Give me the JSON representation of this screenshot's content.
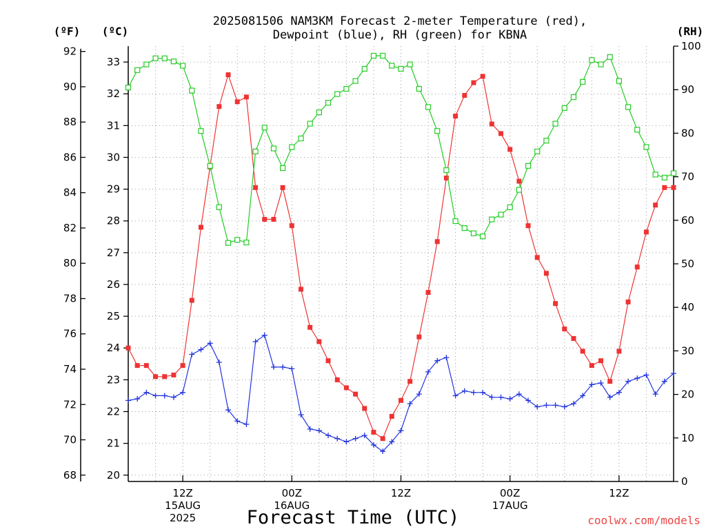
{
  "title_line1": "2025081506 NAM3KM Forecast 2-meter Temperature (red),",
  "title_line2": "Dewpoint (blue), RH (green) for KBNA",
  "unit_f": "(ºF)",
  "unit_c": "(ºC)",
  "unit_rh": "(RH)",
  "xlabel": "Forecast Time (UTC)",
  "credit": "coolwx.com/models",
  "colors": {
    "temp": "#ee3333",
    "dewpoint": "#2233dd",
    "rh": "#22cc22",
    "grid": "#999999"
  },
  "chart_data": {
    "type": "line",
    "x_unit": "forecast hour from 2025-08-15 06Z (hourly points)",
    "x_hours": [
      0,
      1,
      2,
      3,
      4,
      5,
      6,
      7,
      8,
      9,
      10,
      11,
      12,
      13,
      14,
      15,
      16,
      17,
      18,
      19,
      20,
      21,
      22,
      23,
      24,
      25,
      26,
      27,
      28,
      29,
      30,
      31,
      32,
      33,
      34,
      35,
      36,
      37,
      38,
      39,
      40,
      41,
      42,
      43,
      44,
      45,
      46,
      47,
      48,
      49,
      50,
      51,
      52,
      53,
      54,
      55,
      56,
      57,
      58,
      59,
      60
    ],
    "x_ticks": [
      {
        "hour": 6,
        "lines": [
          "12Z",
          "15AUG",
          "2025"
        ]
      },
      {
        "hour": 18,
        "lines": [
          "00Z",
          "16AUG"
        ]
      },
      {
        "hour": 30,
        "lines": [
          "12Z"
        ]
      },
      {
        "hour": 42,
        "lines": [
          "00Z",
          "17AUG"
        ]
      },
      {
        "hour": 54,
        "lines": [
          "12Z"
        ]
      }
    ],
    "y_left_f": {
      "ticks": [
        68,
        70,
        72,
        74,
        76,
        78,
        80,
        82,
        84,
        86,
        88,
        90,
        92
      ]
    },
    "y_left_c": {
      "min": 19.8,
      "max": 33.5,
      "ticks": [
        20,
        21,
        22,
        23,
        24,
        25,
        26,
        27,
        28,
        29,
        30,
        31,
        32,
        33
      ]
    },
    "y_right_rh": {
      "min": 0,
      "max": 100,
      "ticks": [
        0,
        10,
        20,
        30,
        40,
        50,
        60,
        70,
        80,
        90,
        100
      ]
    },
    "grid": true,
    "series": [
      {
        "name": "Temperature",
        "axis": "celsius",
        "marker": "filled-square",
        "values": [
          24.0,
          23.45,
          23.45,
          23.1,
          23.1,
          23.15,
          23.45,
          25.5,
          27.8,
          29.7,
          31.6,
          32.6,
          31.75,
          31.9,
          29.05,
          28.05,
          28.05,
          29.05,
          27.85,
          25.85,
          24.65,
          24.2,
          23.6,
          23.0,
          22.75,
          22.55,
          22.1,
          21.35,
          21.15,
          21.85,
          22.35,
          22.95,
          24.35,
          25.75,
          27.35,
          29.35,
          31.3,
          31.95,
          32.35,
          32.55,
          31.05,
          30.75,
          30.25,
          29.25,
          27.85,
          26.85,
          26.35,
          25.4,
          24.6,
          24.3,
          23.9,
          23.45,
          23.6,
          22.95,
          23.9,
          25.45,
          26.55,
          27.65,
          28.5,
          29.05,
          29.05
        ]
      },
      {
        "name": "Dewpoint",
        "axis": "celsius",
        "marker": "plus",
        "values": [
          22.35,
          22.4,
          22.6,
          22.5,
          22.5,
          22.45,
          22.6,
          23.8,
          23.95,
          24.15,
          23.55,
          22.05,
          21.7,
          21.6,
          24.2,
          24.4,
          23.4,
          23.4,
          23.35,
          21.9,
          21.45,
          21.4,
          21.25,
          21.15,
          21.05,
          21.15,
          21.25,
          20.95,
          20.75,
          21.05,
          21.4,
          22.25,
          22.55,
          23.25,
          23.6,
          23.7,
          22.5,
          22.65,
          22.6,
          22.6,
          22.45,
          22.45,
          22.4,
          22.55,
          22.35,
          22.15,
          22.2,
          22.2,
          22.15,
          22.25,
          22.5,
          22.85,
          22.9,
          22.45,
          22.6,
          22.95,
          23.05,
          23.15,
          22.55,
          22.95,
          23.2
        ]
      },
      {
        "name": "Relative Humidity",
        "axis": "rh",
        "marker": "open-square",
        "values": [
          90.5,
          94.5,
          95.8,
          97.2,
          97.2,
          96.5,
          95.5,
          89.8,
          80.5,
          72.5,
          63.0,
          54.8,
          55.5,
          54.9,
          75.8,
          81.3,
          76.5,
          72.0,
          76.8,
          78.8,
          82.2,
          84.8,
          87.0,
          89.0,
          90.2,
          92.0,
          94.8,
          97.8,
          97.8,
          95.5,
          94.8,
          95.8,
          90.2,
          86.0,
          80.5,
          71.5,
          59.8,
          58.2,
          57.0,
          56.3,
          60.2,
          61.3,
          63.0,
          67.0,
          72.5,
          75.8,
          78.3,
          82.2,
          85.8,
          88.3,
          91.8,
          96.8,
          95.8,
          97.5,
          92.0,
          86.0,
          80.8,
          76.8,
          70.5,
          69.8,
          70.8
        ]
      }
    ]
  }
}
